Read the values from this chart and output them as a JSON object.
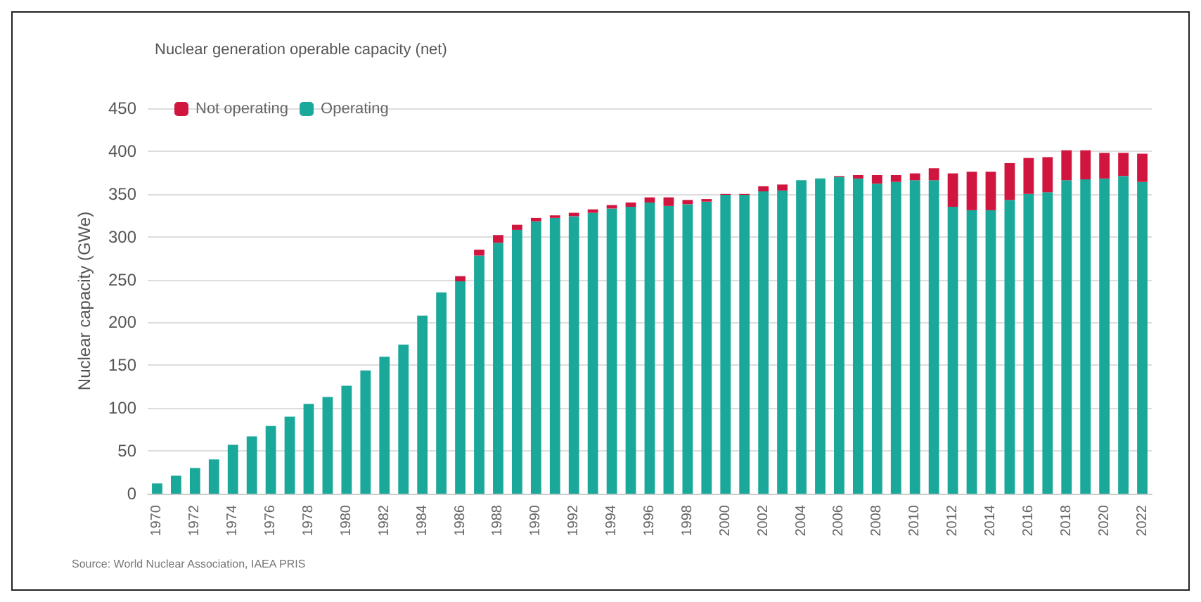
{
  "chart_data": {
    "type": "bar",
    "title": "Nuclear generation operable capacity (net)",
    "ylabel": "Nuclear capacity (GWe)",
    "annotations": [
      "Source: World Nuclear Association, IAEA PRIS"
    ],
    "categories": [
      "1970",
      null,
      "1972",
      null,
      "1974",
      null,
      "1976",
      null,
      "1978",
      null,
      "1980",
      null,
      "1982",
      null,
      "1984",
      null,
      "1986",
      null,
      "1988",
      null,
      "1990",
      null,
      "1992",
      null,
      "1994",
      null,
      "1996",
      null,
      "1998",
      null,
      "2000",
      null,
      "2002",
      null,
      "2004",
      null,
      "2006",
      null,
      "2008",
      null,
      "2010",
      null,
      "2012",
      null,
      "2014",
      null,
      "2016",
      null,
      "2018",
      null,
      "2020",
      null,
      "2022"
    ],
    "stacked": true,
    "grid": "y",
    "legend": "top left",
    "ylim": [
      0,
      450
    ],
    "yticks": [
      0,
      50,
      100,
      150,
      200,
      250,
      300,
      350,
      400,
      450
    ],
    "series": [
      {
        "name": "Operating",
        "color": "#1aa89a",
        "values": [
          12,
          21,
          30,
          40,
          57,
          67,
          79,
          90,
          105,
          113,
          126,
          144,
          160,
          174,
          208,
          235,
          248,
          278,
          293,
          308,
          318,
          322,
          324,
          328,
          333,
          335,
          340,
          336,
          338,
          341,
          349,
          349,
          353,
          354,
          366,
          368,
          370,
          368,
          362,
          364,
          366,
          366,
          335,
          331,
          331,
          343,
          350,
          352,
          366,
          367,
          368,
          371,
          364
        ]
      },
      {
        "name": "Not operating",
        "color": "#d0163f",
        "values": [
          0,
          0,
          0,
          0,
          0,
          0,
          0,
          0,
          0,
          0,
          0,
          0,
          0,
          0,
          0,
          0,
          6,
          7,
          9,
          6,
          4,
          3,
          4,
          4,
          4,
          5,
          6,
          10,
          5,
          3,
          1,
          1,
          6,
          7,
          0,
          0,
          1,
          4,
          10,
          8,
          8,
          14,
          39,
          45,
          45,
          43,
          42,
          41,
          35,
          34,
          30,
          27,
          33
        ]
      }
    ]
  }
}
